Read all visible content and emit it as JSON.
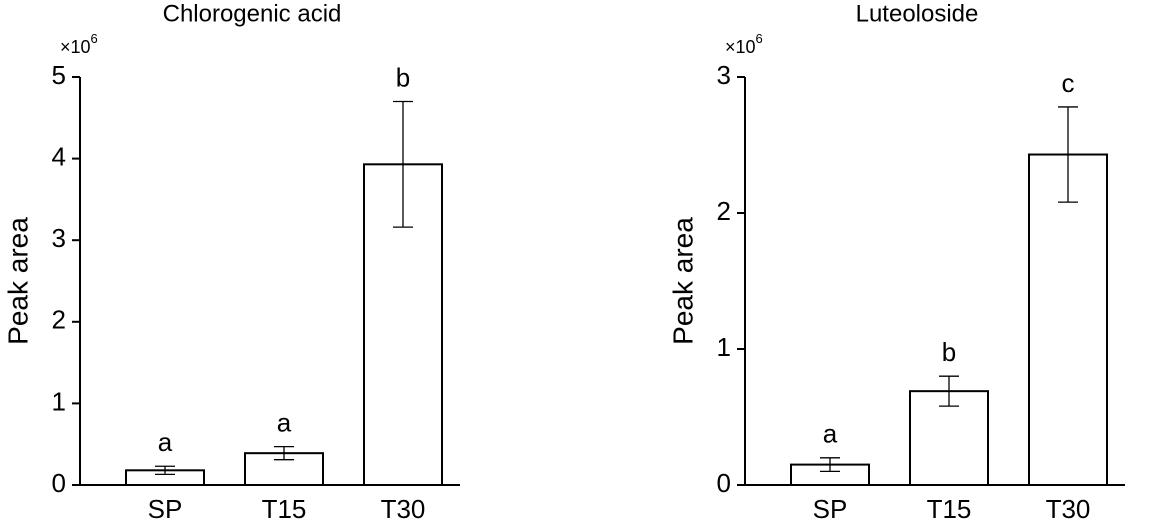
{
  "chart_data": [
    {
      "type": "bar",
      "title": "Chlorogenic acid",
      "y_label": "Peak area",
      "axis_multiplier": {
        "base": "×10",
        "exponent": "6"
      },
      "categories": [
        "SP",
        "T15",
        "T30"
      ],
      "values": [
        0.18,
        0.39,
        3.93
      ],
      "errors": [
        0.05,
        0.08,
        0.77
      ],
      "letters": [
        "a",
        "a",
        "b"
      ],
      "color": "#ffffff",
      "ylim": [
        0,
        5
      ],
      "yticks": [
        0,
        1,
        2,
        3,
        4,
        5
      ]
    },
    {
      "type": "bar",
      "title": "Luteoloside",
      "y_label": "Peak area",
      "axis_multiplier": {
        "base": "×10",
        "exponent": "6"
      },
      "categories": [
        "SP",
        "T15",
        "T30"
      ],
      "values": [
        0.15,
        0.69,
        2.43
      ],
      "errors": [
        0.05,
        0.11,
        0.35
      ],
      "letters": [
        "a",
        "b",
        "c"
      ],
      "color": "#ffffff",
      "ylim": [
        0,
        3
      ],
      "yticks": [
        0,
        1,
        2,
        3
      ]
    }
  ]
}
